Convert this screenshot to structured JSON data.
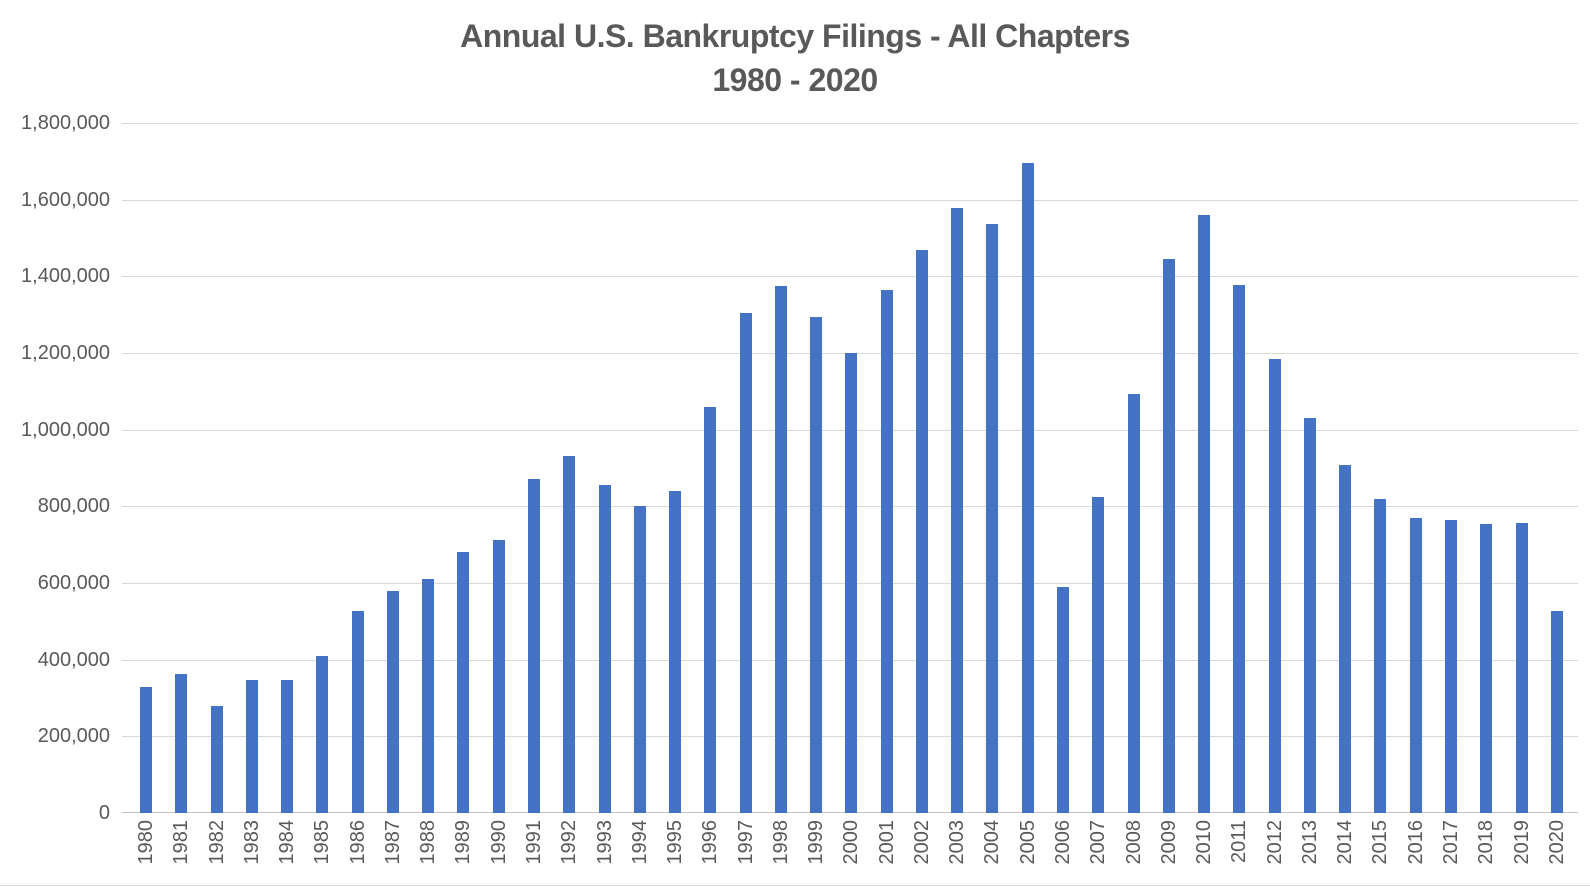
{
  "chart_data": {
    "type": "bar",
    "title": "Annual U.S. Bankruptcy Filings - All Chapters",
    "subtitle": "1980 - 2020",
    "xlabel": "",
    "ylabel": "",
    "ylim": [
      0,
      1800000
    ],
    "ytick_step": 200000,
    "grid": true,
    "legend": "none",
    "bar_color": "#4472C4",
    "text_color": "#595959",
    "gridline_color": "#D9D9D9",
    "axis_line_color": "#BFBFBF",
    "y_tick_labels": [
      "0",
      "200,000",
      "400,000",
      "600,000",
      "800,000",
      "1,000,000",
      "1,200,000",
      "1,400,000",
      "1,600,000",
      "1,800,000"
    ],
    "categories": [
      "1980",
      "1981",
      "1982",
      "1983",
      "1984",
      "1985",
      "1986",
      "1987",
      "1988",
      "1989",
      "1990",
      "1991",
      "1992",
      "1993",
      "1994",
      "1995",
      "1996",
      "1997",
      "1998",
      "1999",
      "2000",
      "2001",
      "2002",
      "2003",
      "2004",
      "2005",
      "2006",
      "2007",
      "2008",
      "2009",
      "2010",
      "2011",
      "2012",
      "2013",
      "2014",
      "2015",
      "2016",
      "2017",
      "2018",
      "2019",
      "2020"
    ],
    "values": [
      330000,
      363000,
      280000,
      347000,
      347000,
      410000,
      527000,
      578000,
      610000,
      680000,
      712000,
      872000,
      932000,
      856000,
      800000,
      840000,
      1060000,
      1305000,
      1375000,
      1295000,
      1200000,
      1365000,
      1468000,
      1578000,
      1537000,
      1695000,
      590000,
      825000,
      1093000,
      1445000,
      1560000,
      1378000,
      1185000,
      1031000,
      908000,
      818000,
      770000,
      765000,
      753000,
      756000,
      528000
    ]
  }
}
